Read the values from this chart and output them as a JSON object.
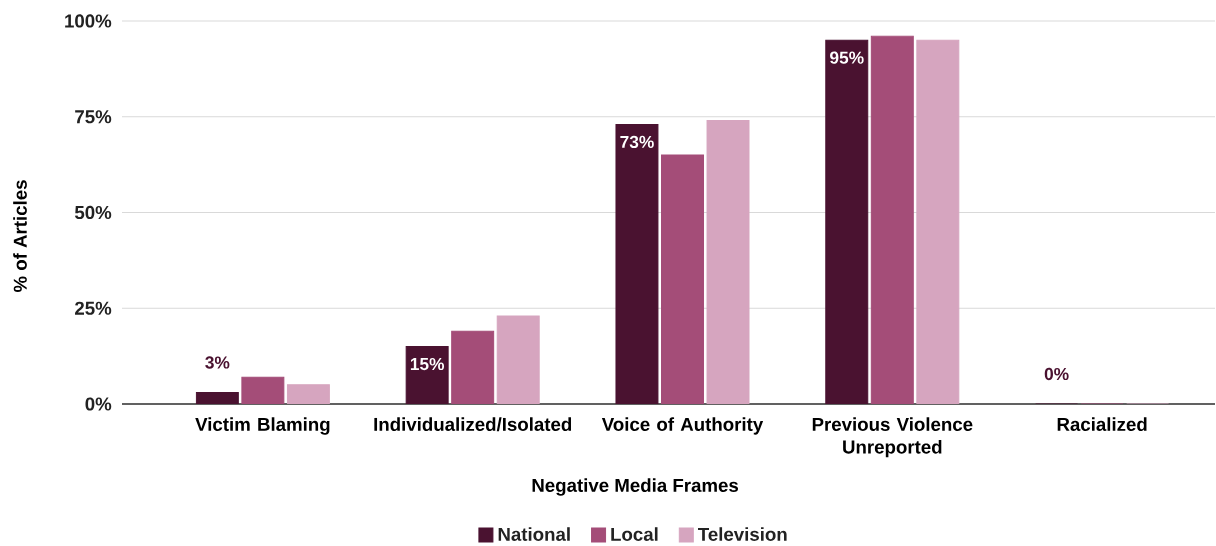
{
  "chart_data": {
    "type": "bar",
    "xlabel": "Negative Media Frames",
    "ylabel": "% of Articles",
    "categories": [
      "Victim Blaming",
      "Individualized/Isolated",
      "Voice of Authority",
      "Previous Violence Unreported",
      "Racialized"
    ],
    "series": [
      {
        "name": "National",
        "color": "#4a1230",
        "values": [
          3,
          15,
          73,
          95,
          0
        ],
        "value_labels": [
          "3%",
          "15%",
          "73%",
          "95%",
          "0%"
        ]
      },
      {
        "name": "Local",
        "color": "#a44d78",
        "values": [
          7,
          19,
          65,
          96,
          0
        ]
      },
      {
        "name": "Television",
        "color": "#d6a5bf",
        "values": [
          5,
          23,
          74,
          95,
          0
        ]
      }
    ],
    "ylim": [
      0,
      100
    ],
    "yticks": [
      {
        "value": 0,
        "label": "0%"
      },
      {
        "value": 25,
        "label": "25%"
      },
      {
        "value": 50,
        "label": "50%"
      },
      {
        "value": 75,
        "label": "75%"
      },
      {
        "value": 100,
        "label": "100%"
      }
    ],
    "grid": "y",
    "legend": "bottom"
  }
}
